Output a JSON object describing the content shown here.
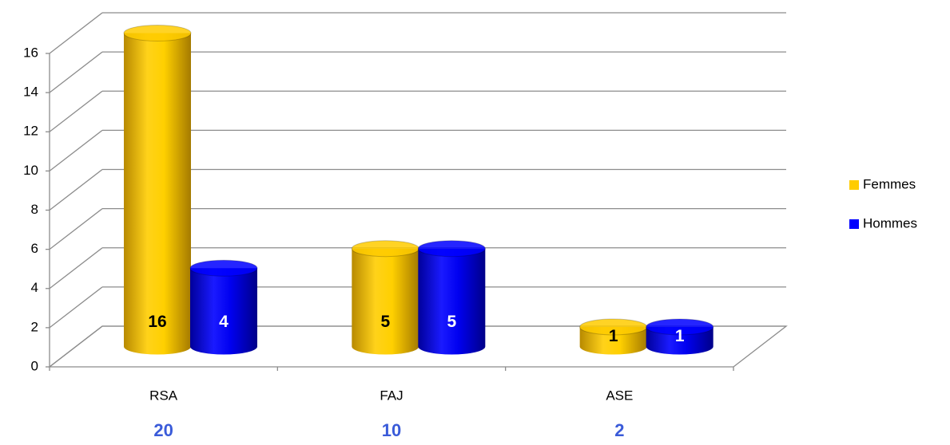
{
  "chart_data": {
    "type": "bar3d",
    "categories": [
      "RSA",
      "FAJ",
      "ASE"
    ],
    "series": [
      {
        "name": "Femmes",
        "color": "#ffcc00",
        "label_color": "#000000",
        "values": [
          16,
          5,
          1
        ]
      },
      {
        "name": "Hommes",
        "color": "#0000ff",
        "label_color": "#ffffff",
        "values": [
          4,
          5,
          1
        ]
      }
    ],
    "totals": [
      20,
      10,
      2
    ],
    "ylim": [
      0,
      16
    ],
    "yticks": [
      0,
      2,
      4,
      6,
      8,
      10,
      12,
      14,
      16
    ],
    "grid": true,
    "legend": "right"
  }
}
